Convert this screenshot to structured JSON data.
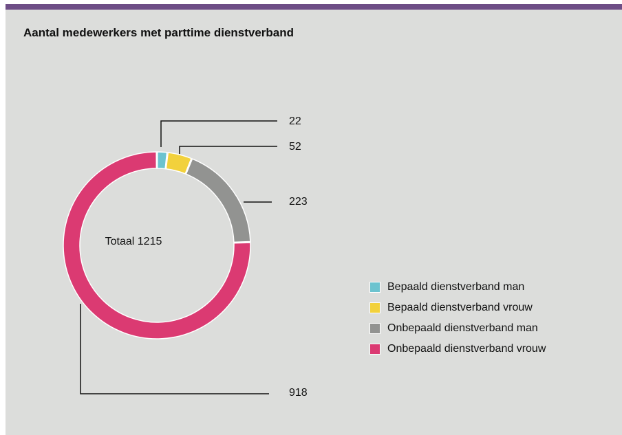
{
  "title": "Aantal medewerkers met parttime dienstverband",
  "colors": {
    "header_bar": "#6e4e86",
    "background": "#dcdddb"
  },
  "chart_data": {
    "type": "pie",
    "donut": true,
    "center_label": "Totaal 1215",
    "total": 1215,
    "slices": [
      {
        "label": "Bepaald dienstverband man",
        "value": 22,
        "color": "#6cc3cf"
      },
      {
        "label": "Bepaald dienstverband vrouw",
        "value": 52,
        "color": "#f2d13c"
      },
      {
        "label": "Onbepaald dienstverband man",
        "value": 223,
        "color": "#929391"
      },
      {
        "label": "Onbepaald dienstverband vrouw",
        "value": 918,
        "color": "#db3a72"
      }
    ],
    "legend_position": "right"
  }
}
